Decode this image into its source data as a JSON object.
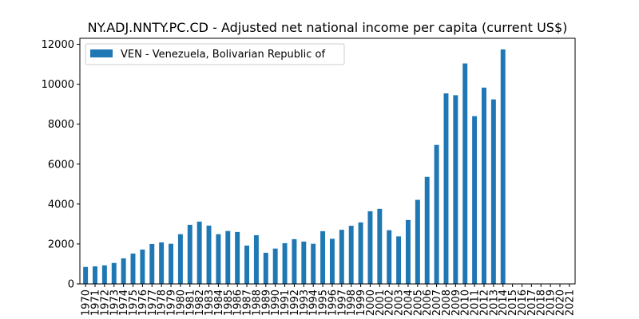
{
  "chart_data": {
    "type": "bar",
    "title": "NY.ADJ.NNTY.PC.CD - Adjusted net national income per capita (current US$)",
    "xlabel": "",
    "ylabel": "",
    "ylim": [
      0,
      12300
    ],
    "yticks": [
      0,
      2000,
      4000,
      6000,
      8000,
      10000,
      12000
    ],
    "grid": false,
    "legend_position": "top-left",
    "categories": [
      "1970",
      "1971",
      "1972",
      "1973",
      "1974",
      "1975",
      "1976",
      "1977",
      "1978",
      "1979",
      "1980",
      "1981",
      "1982",
      "1983",
      "1984",
      "1985",
      "1986",
      "1987",
      "1988",
      "1989",
      "1990",
      "1991",
      "1992",
      "1993",
      "1994",
      "1995",
      "1996",
      "1997",
      "1998",
      "1999",
      "2000",
      "2001",
      "2002",
      "2003",
      "2004",
      "2005",
      "2006",
      "2007",
      "2008",
      "2009",
      "2010",
      "2011",
      "2012",
      "2013",
      "2014",
      "2015",
      "2016",
      "2017",
      "2018",
      "2019",
      "2020",
      "2021"
    ],
    "series": [
      {
        "name": "VEN - Venezuela, Bolivarian Republic of",
        "color": "#1f77b4",
        "values": [
          850,
          880,
          930,
          1050,
          1280,
          1520,
          1720,
          2000,
          2080,
          2010,
          2490,
          2960,
          3120,
          2920,
          2490,
          2650,
          2600,
          1920,
          2440,
          1560,
          1770,
          2040,
          2240,
          2120,
          2010,
          2640,
          2260,
          2710,
          2910,
          3080,
          3640,
          3760,
          2690,
          2380,
          3200,
          4210,
          5360,
          6960,
          9540,
          9450,
          11040,
          8400,
          9830,
          9240,
          11740,
          null,
          null,
          null,
          null,
          null,
          null,
          null
        ]
      }
    ]
  }
}
